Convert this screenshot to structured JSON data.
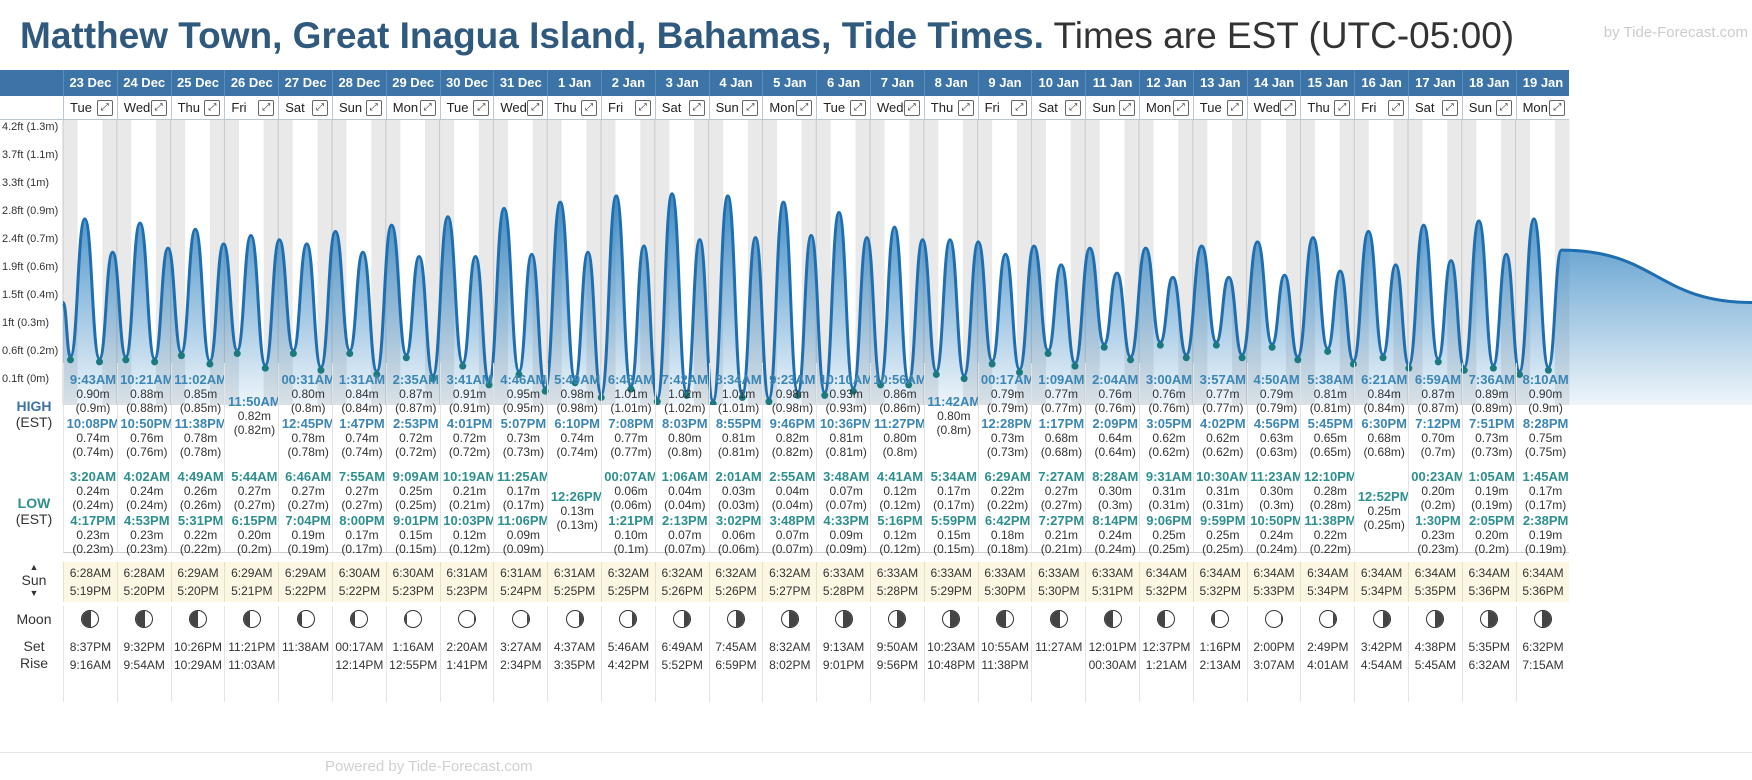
{
  "header": {
    "title": "Matthew Town, Great Inagua Island, Bahamas, Tide Times.",
    "timezone": "Times are EST (UTC-05:00)",
    "brand": "by Tide-Forecast.com"
  },
  "labels": {
    "high": "HIGH",
    "high_tz": "(EST)",
    "low": "LOW",
    "low_tz": "(EST)",
    "sun": "Sun",
    "moon": "Moon",
    "set": "Set",
    "rise": "Rise"
  },
  "y_axis": [
    "4.2ft (1.3m)",
    "3.7ft (1.1m)",
    "3.3ft (1m)",
    "2.8ft (0.9m)",
    "2.4ft (0.7m)",
    "1.9ft (0.6m)",
    "1.5ft (0.4m)",
    "1ft (0.3m)",
    "0.6ft (0.2m)",
    "0.1ft (0m)"
  ],
  "footer_text": "Powered by Tide-Forecast.com",
  "days": [
    {
      "date": "23 Dec",
      "day": "Tue",
      "h1": [
        "9:43AM",
        "0.90m",
        "(0.9m)"
      ],
      "h2": [
        "10:08PM",
        "0.74m",
        "(0.74m)"
      ],
      "l1": [
        "3:20AM",
        "0.24m",
        "(0.24m)"
      ],
      "l2": [
        "4:17PM",
        "0.23m",
        "(0.23m)"
      ],
      "sun": [
        "6:28AM",
        "5:19PM"
      ],
      "moon": [
        "8:37PM",
        "9:16AM"
      ],
      "phase": 0.15
    },
    {
      "date": "24 Dec",
      "day": "Wed",
      "h1": [
        "10:21AM",
        "0.88m",
        "(0.88m)"
      ],
      "h2": [
        "10:50PM",
        "0.76m",
        "(0.76m)"
      ],
      "l1": [
        "4:02AM",
        "0.24m",
        "(0.24m)"
      ],
      "l2": [
        "4:53PM",
        "0.23m",
        "(0.23m)"
      ],
      "sun": [
        "6:28AM",
        "5:20PM"
      ],
      "moon": [
        "9:32PM",
        "9:54AM"
      ],
      "phase": 0.2
    },
    {
      "date": "25 Dec",
      "day": "Thu",
      "h1": [
        "11:02AM",
        "0.85m",
        "(0.85m)"
      ],
      "h2": [
        "11:38PM",
        "0.78m",
        "(0.78m)"
      ],
      "l1": [
        "4:49AM",
        "0.26m",
        "(0.26m)"
      ],
      "l2": [
        "5:31PM",
        "0.22m",
        "(0.22m)"
      ],
      "sun": [
        "6:29AM",
        "5:20PM"
      ],
      "moon": [
        "10:26PM",
        "10:29AM"
      ],
      "phase": 0.25
    },
    {
      "date": "26 Dec",
      "day": "Fri",
      "h1": [
        "11:50AM",
        "0.82m",
        "(0.82m)"
      ],
      "h2": null,
      "l1": [
        "5:44AM",
        "0.27m",
        "(0.27m)"
      ],
      "l2": [
        "6:15PM",
        "0.20m",
        "(0.2m)"
      ],
      "sun": [
        "6:29AM",
        "5:21PM"
      ],
      "moon": [
        "11:21PM",
        "11:03AM"
      ],
      "phase": 0.3
    },
    {
      "date": "27 Dec",
      "day": "Sat",
      "h1": [
        "00:31AM",
        "0.80m",
        "(0.8m)"
      ],
      "h2": [
        "12:45PM",
        "0.78m",
        "(0.78m)"
      ],
      "l1": [
        "6:46AM",
        "0.27m",
        "(0.27m)"
      ],
      "l2": [
        "7:04PM",
        "0.19m",
        "(0.19m)"
      ],
      "sun": [
        "6:29AM",
        "5:22PM"
      ],
      "moon": [
        "",
        "11:38AM"
      ],
      "phase": 0.35
    },
    {
      "date": "28 Dec",
      "day": "Sun",
      "h1": [
        "1:31AM",
        "0.84m",
        "(0.84m)"
      ],
      "h2": [
        "1:47PM",
        "0.74m",
        "(0.74m)"
      ],
      "l1": [
        "7:55AM",
        "0.27m",
        "(0.27m)"
      ],
      "l2": [
        "8:00PM",
        "0.17m",
        "(0.17m)"
      ],
      "sun": [
        "6:30AM",
        "5:22PM"
      ],
      "moon": [
        "00:17AM",
        "12:14PM"
      ],
      "phase": 0.4
    },
    {
      "date": "29 Dec",
      "day": "Mon",
      "h1": [
        "2:35AM",
        "0.87m",
        "(0.87m)"
      ],
      "h2": [
        "2:53PM",
        "0.72m",
        "(0.72m)"
      ],
      "l1": [
        "9:09AM",
        "0.25m",
        "(0.25m)"
      ],
      "l2": [
        "9:01PM",
        "0.15m",
        "(0.15m)"
      ],
      "sun": [
        "6:30AM",
        "5:23PM"
      ],
      "moon": [
        "1:16AM",
        "12:55PM"
      ],
      "phase": 0.45
    },
    {
      "date": "30 Dec",
      "day": "Tue",
      "h1": [
        "3:41AM",
        "0.91m",
        "(0.91m)"
      ],
      "h2": [
        "4:01PM",
        "0.72m",
        "(0.72m)"
      ],
      "l1": [
        "10:19AM",
        "0.21m",
        "(0.21m)"
      ],
      "l2": [
        "10:03PM",
        "0.12m",
        "(0.12m)"
      ],
      "sun": [
        "6:31AM",
        "5:23PM"
      ],
      "moon": [
        "2:20AM",
        "1:41PM"
      ],
      "phase": 0.5
    },
    {
      "date": "31 Dec",
      "day": "Wed",
      "h1": [
        "4:46AM",
        "0.95m",
        "(0.95m)"
      ],
      "h2": [
        "5:07PM",
        "0.73m",
        "(0.73m)"
      ],
      "l1": [
        "11:25AM",
        "0.17m",
        "(0.17m)"
      ],
      "l2": [
        "11:06PM",
        "0.09m",
        "(0.09m)"
      ],
      "sun": [
        "6:31AM",
        "5:24PM"
      ],
      "moon": [
        "3:27AM",
        "2:34PM"
      ],
      "phase": 0.55
    },
    {
      "date": "1 Jan",
      "day": "Thu",
      "h1": [
        "5:49AM",
        "0.98m",
        "(0.98m)"
      ],
      "h2": [
        "6:10PM",
        "0.74m",
        "(0.74m)"
      ],
      "l1": [
        "12:26PM",
        "0.13m",
        "(0.13m)"
      ],
      "l2": null,
      "sun": [
        "6:31AM",
        "5:25PM"
      ],
      "moon": [
        "4:37AM",
        "3:35PM"
      ],
      "phase": 0.6
    },
    {
      "date": "2 Jan",
      "day": "Fri",
      "h1": [
        "6:48AM",
        "1.01m",
        "(1.01m)"
      ],
      "h2": [
        "7:08PM",
        "0.77m",
        "(0.77m)"
      ],
      "l1": [
        "00:07AM",
        "0.06m",
        "(0.06m)"
      ],
      "l2": [
        "1:21PM",
        "0.10m",
        "(0.1m)"
      ],
      "sun": [
        "6:32AM",
        "5:25PM"
      ],
      "moon": [
        "5:46AM",
        "4:42PM"
      ],
      "phase": 0.65
    },
    {
      "date": "3 Jan",
      "day": "Sat",
      "h1": [
        "7:42AM",
        "1.02m",
        "(1.02m)"
      ],
      "h2": [
        "8:03PM",
        "0.80m",
        "(0.8m)"
      ],
      "l1": [
        "1:06AM",
        "0.04m",
        "(0.04m)"
      ],
      "l2": [
        "2:13PM",
        "0.07m",
        "(0.07m)"
      ],
      "sun": [
        "6:32AM",
        "5:26PM"
      ],
      "moon": [
        "6:49AM",
        "5:52PM"
      ],
      "phase": 0.7
    },
    {
      "date": "4 Jan",
      "day": "Sun",
      "h1": [
        "8:34AM",
        "1.01m",
        "(1.01m)"
      ],
      "h2": [
        "8:55PM",
        "0.81m",
        "(0.81m)"
      ],
      "l1": [
        "2:01AM",
        "0.03m",
        "(0.03m)"
      ],
      "l2": [
        "3:02PM",
        "0.06m",
        "(0.06m)"
      ],
      "sun": [
        "6:32AM",
        "5:26PM"
      ],
      "moon": [
        "7:45AM",
        "6:59PM"
      ],
      "phase": 0.75
    },
    {
      "date": "5 Jan",
      "day": "Mon",
      "h1": [
        "9:23AM",
        "0.98m",
        "(0.98m)"
      ],
      "h2": [
        "9:46PM",
        "0.82m",
        "(0.82m)"
      ],
      "l1": [
        "2:55AM",
        "0.04m",
        "(0.04m)"
      ],
      "l2": [
        "3:48PM",
        "0.07m",
        "(0.07m)"
      ],
      "sun": [
        "6:32AM",
        "5:27PM"
      ],
      "moon": [
        "8:32AM",
        "8:02PM"
      ],
      "phase": 0.8
    },
    {
      "date": "6 Jan",
      "day": "Tue",
      "h1": [
        "10:10AM",
        "0.93m",
        "(0.93m)"
      ],
      "h2": [
        "10:36PM",
        "0.81m",
        "(0.81m)"
      ],
      "l1": [
        "3:48AM",
        "0.07m",
        "(0.07m)"
      ],
      "l2": [
        "4:33PM",
        "0.09m",
        "(0.09m)"
      ],
      "sun": [
        "6:33AM",
        "5:28PM"
      ],
      "moon": [
        "9:13AM",
        "9:01PM"
      ],
      "phase": 0.85
    },
    {
      "date": "7 Jan",
      "day": "Wed",
      "h1": [
        "10:56AM",
        "0.86m",
        "(0.86m)"
      ],
      "h2": [
        "11:27PM",
        "0.80m",
        "(0.8m)"
      ],
      "l1": [
        "4:41AM",
        "0.12m",
        "(0.12m)"
      ],
      "l2": [
        "5:16PM",
        "0.12m",
        "(0.12m)"
      ],
      "sun": [
        "6:33AM",
        "5:28PM"
      ],
      "moon": [
        "9:50AM",
        "9:56PM"
      ],
      "phase": 0.9
    },
    {
      "date": "8 Jan",
      "day": "Thu",
      "h1": [
        "11:42AM",
        "0.80m",
        "(0.8m)"
      ],
      "h2": null,
      "l1": [
        "5:34AM",
        "0.17m",
        "(0.17m)"
      ],
      "l2": [
        "5:59PM",
        "0.15m",
        "(0.15m)"
      ],
      "sun": [
        "6:33AM",
        "5:29PM"
      ],
      "moon": [
        "10:23AM",
        "10:48PM"
      ],
      "phase": 0.95
    },
    {
      "date": "9 Jan",
      "day": "Fri",
      "h1": [
        "00:17AM",
        "0.79m",
        "(0.79m)"
      ],
      "h2": [
        "12:28PM",
        "0.73m",
        "(0.73m)"
      ],
      "l1": [
        "6:29AM",
        "0.22m",
        "(0.22m)"
      ],
      "l2": [
        "6:42PM",
        "0.18m",
        "(0.18m)"
      ],
      "sun": [
        "6:33AM",
        "5:30PM"
      ],
      "moon": [
        "10:55AM",
        "11:38PM"
      ],
      "phase": 0.1
    },
    {
      "date": "10 Jan",
      "day": "Sat",
      "h1": [
        "1:09AM",
        "0.77m",
        "(0.77m)"
      ],
      "h2": [
        "1:17PM",
        "0.68m",
        "(0.68m)"
      ],
      "l1": [
        "7:27AM",
        "0.27m",
        "(0.27m)"
      ],
      "l2": [
        "7:27PM",
        "0.21m",
        "(0.21m)"
      ],
      "sun": [
        "6:33AM",
        "5:30PM"
      ],
      "moon": [
        "11:27AM",
        ""
      ],
      "phase": 0.15
    },
    {
      "date": "11 Jan",
      "day": "Sun",
      "h1": [
        "2:04AM",
        "0.76m",
        "(0.76m)"
      ],
      "h2": [
        "2:09PM",
        "0.64m",
        "(0.64m)"
      ],
      "l1": [
        "8:28AM",
        "0.30m",
        "(0.3m)"
      ],
      "l2": [
        "8:14PM",
        "0.24m",
        "(0.24m)"
      ],
      "sun": [
        "6:33AM",
        "5:31PM"
      ],
      "moon": [
        "12:01PM",
        "00:30AM"
      ],
      "phase": 0.2
    },
    {
      "date": "12 Jan",
      "day": "Mon",
      "h1": [
        "3:00AM",
        "0.76m",
        "(0.76m)"
      ],
      "h2": [
        "3:05PM",
        "0.62m",
        "(0.62m)"
      ],
      "l1": [
        "9:31AM",
        "0.31m",
        "(0.31m)"
      ],
      "l2": [
        "9:06PM",
        "0.25m",
        "(0.25m)"
      ],
      "sun": [
        "6:34AM",
        "5:32PM"
      ],
      "moon": [
        "12:37PM",
        "1:21AM"
      ],
      "phase": 0.3
    },
    {
      "date": "13 Jan",
      "day": "Tue",
      "h1": [
        "3:57AM",
        "0.77m",
        "(0.77m)"
      ],
      "h2": [
        "4:02PM",
        "0.62m",
        "(0.62m)"
      ],
      "l1": [
        "10:30AM",
        "0.31m",
        "(0.31m)"
      ],
      "l2": [
        "9:59PM",
        "0.25m",
        "(0.25m)"
      ],
      "sun": [
        "6:34AM",
        "5:32PM"
      ],
      "moon": [
        "1:16PM",
        "2:13AM"
      ],
      "phase": 0.4
    },
    {
      "date": "14 Jan",
      "day": "Wed",
      "h1": [
        "4:50AM",
        "0.79m",
        "(0.79m)"
      ],
      "h2": [
        "4:56PM",
        "0.63m",
        "(0.63m)"
      ],
      "l1": [
        "11:23AM",
        "0.30m",
        "(0.3m)"
      ],
      "l2": [
        "10:50PM",
        "0.24m",
        "(0.24m)"
      ],
      "sun": [
        "6:34AM",
        "5:33PM"
      ],
      "moon": [
        "2:00PM",
        "3:07AM"
      ],
      "phase": 0.5
    },
    {
      "date": "15 Jan",
      "day": "Thu",
      "h1": [
        "5:38AM",
        "0.81m",
        "(0.81m)"
      ],
      "h2": [
        "5:45PM",
        "0.65m",
        "(0.65m)"
      ],
      "l1": [
        "12:10PM",
        "0.28m",
        "(0.28m)"
      ],
      "l2": [
        "11:38PM",
        "0.22m",
        "(0.22m)"
      ],
      "sun": [
        "6:34AM",
        "5:34PM"
      ],
      "moon": [
        "2:49PM",
        "4:01AM"
      ],
      "phase": 0.6
    },
    {
      "date": "16 Jan",
      "day": "Fri",
      "h1": [
        "6:21AM",
        "0.84m",
        "(0.84m)"
      ],
      "h2": [
        "6:30PM",
        "0.68m",
        "(0.68m)"
      ],
      "l1": [
        "12:52PM",
        "0.25m",
        "(0.25m)"
      ],
      "l2": null,
      "sun": [
        "6:34AM",
        "5:34PM"
      ],
      "moon": [
        "3:42PM",
        "4:54AM"
      ],
      "phase": 0.7
    },
    {
      "date": "17 Jan",
      "day": "Sat",
      "h1": [
        "6:59AM",
        "0.87m",
        "(0.87m)"
      ],
      "h2": [
        "7:12PM",
        "0.70m",
        "(0.7m)"
      ],
      "l1": [
        "00:23AM",
        "0.20m",
        "(0.2m)"
      ],
      "l2": [
        "1:30PM",
        "0.23m",
        "(0.23m)"
      ],
      "sun": [
        "6:34AM",
        "5:35PM"
      ],
      "moon": [
        "4:38PM",
        "5:45AM"
      ],
      "phase": 0.8
    },
    {
      "date": "18 Jan",
      "day": "Sun",
      "h1": [
        "7:36AM",
        "0.89m",
        "(0.89m)"
      ],
      "h2": [
        "7:51PM",
        "0.73m",
        "(0.73m)"
      ],
      "l1": [
        "1:05AM",
        "0.19m",
        "(0.19m)"
      ],
      "l2": [
        "2:05PM",
        "0.20m",
        "(0.2m)"
      ],
      "sun": [
        "6:34AM",
        "5:36PM"
      ],
      "moon": [
        "5:35PM",
        "6:32AM"
      ],
      "phase": 0.9
    },
    {
      "date": "19 Jan",
      "day": "Mon",
      "h1": [
        "8:10AM",
        "0.90m",
        "(0.9m)"
      ],
      "h2": [
        "8:28PM",
        "0.75m",
        "(0.75m)"
      ],
      "l1": [
        "1:45AM",
        "0.17m",
        "(0.17m)"
      ],
      "l2": [
        "2:38PM",
        "0.19m",
        "(0.19m)"
      ],
      "sun": [
        "6:34AM",
        "5:36PM"
      ],
      "moon": [
        "6:32PM",
        "7:15AM"
      ],
      "phase": 1.0
    }
  ]
}
